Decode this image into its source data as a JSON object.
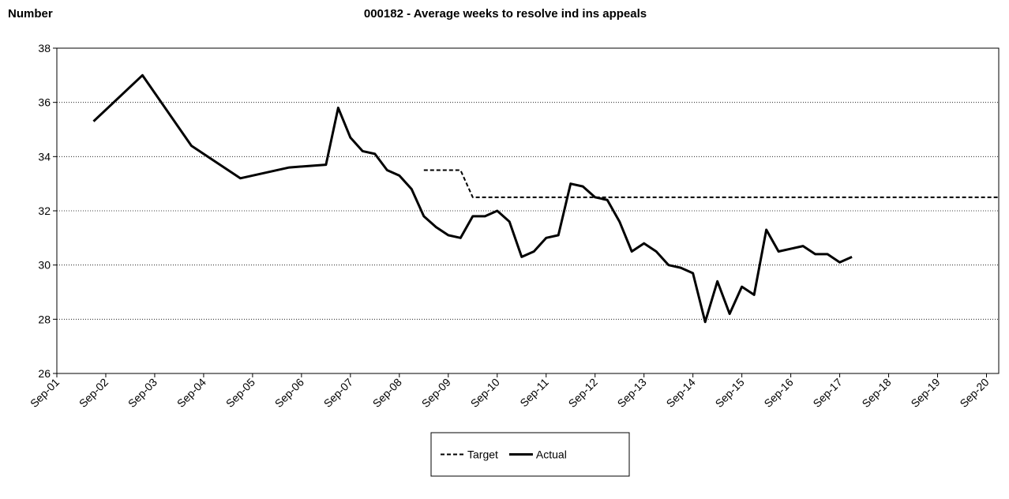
{
  "chart_data": {
    "type": "line",
    "title": "000182 - Average weeks to resolve ind ins appeals",
    "y_label": "Number",
    "xlim": [
      "Sep-01",
      "Dec-20"
    ],
    "xticks": [
      "Sep-01",
      "Sep-02",
      "Sep-03",
      "Sep-04",
      "Sep-05",
      "Sep-06",
      "Sep-07",
      "Sep-08",
      "Sep-09",
      "Sep-10",
      "Sep-11",
      "Sep-12",
      "Sep-13",
      "Sep-14",
      "Sep-15",
      "Sep-16",
      "Sep-17",
      "Sep-18",
      "Sep-19",
      "Sep-20"
    ],
    "ylim": [
      26,
      38
    ],
    "yticks": [
      26,
      28,
      30,
      32,
      34,
      36,
      38
    ],
    "grid": true,
    "legend": "bottom",
    "series": [
      {
        "name": "Target",
        "color": "#000000",
        "dash": true,
        "x": [
          "Mar-09",
          "Dec-09",
          "Mar-10",
          "Dec-20"
        ],
        "values": [
          33.5,
          33.5,
          32.5,
          32.5
        ]
      },
      {
        "name": "Actual",
        "color": "#000000",
        "dash": false,
        "x": [
          "Jun-02",
          "Jun-03",
          "Jun-04",
          "Jun-05",
          "Jun-06",
          "Mar-07",
          "Jun-07",
          "Sep-07",
          "Dec-07",
          "Mar-08",
          "Jun-08",
          "Sep-08",
          "Dec-08",
          "Mar-09",
          "Jun-09",
          "Sep-09",
          "Dec-09",
          "Mar-10",
          "Jun-10",
          "Sep-10",
          "Dec-10",
          "Mar-11",
          "Jun-11",
          "Sep-11",
          "Dec-11",
          "Mar-12",
          "Jun-12",
          "Sep-12",
          "Dec-12",
          "Mar-13",
          "Jun-13",
          "Sep-13",
          "Dec-13",
          "Mar-14",
          "Jun-14",
          "Sep-14",
          "Dec-14",
          "Mar-15",
          "Jun-15",
          "Sep-15",
          "Dec-15",
          "Mar-16",
          "Jun-16",
          "Sep-16",
          "Dec-16",
          "Mar-17",
          "Jun-17",
          "Sep-17",
          "Dec-17"
        ],
        "values": [
          35.3,
          37.0,
          34.4,
          33.2,
          33.6,
          33.7,
          35.8,
          34.7,
          34.2,
          34.1,
          33.5,
          33.3,
          32.8,
          31.8,
          31.4,
          31.1,
          31.0,
          31.8,
          31.8,
          32.0,
          31.6,
          30.3,
          30.5,
          31.0,
          31.1,
          33.0,
          32.9,
          32.5,
          32.4,
          31.6,
          30.5,
          30.8,
          30.5,
          30.0,
          29.9,
          29.7,
          27.9,
          29.4,
          28.2,
          29.2,
          28.9,
          31.3,
          30.5,
          30.6,
          30.7,
          30.4,
          30.4,
          30.1,
          30.3
        ]
      }
    ]
  }
}
